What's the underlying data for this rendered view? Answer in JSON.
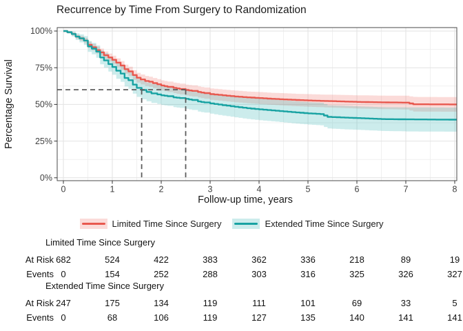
{
  "title": "Recurrence by Time From Surgery to Randomization",
  "x_axis": {
    "label": "Follow-up time, years",
    "ticks": [
      {
        "v": 0,
        "label": "0"
      },
      {
        "v": 1,
        "label": "1"
      },
      {
        "v": 2,
        "label": "2"
      },
      {
        "v": 3,
        "label": "3"
      },
      {
        "v": 4,
        "label": "4"
      },
      {
        "v": 5,
        "label": "5"
      },
      {
        "v": 6,
        "label": "6"
      },
      {
        "v": 7,
        "label": "7"
      },
      {
        "v": 8,
        "label": "8"
      }
    ]
  },
  "y_axis": {
    "label": "Percentage Survival",
    "ticks": [
      {
        "v": 0,
        "label": "0%"
      },
      {
        "v": 25,
        "label": "25%"
      },
      {
        "v": 50,
        "label": "50%"
      },
      {
        "v": 75,
        "label": "75%"
      },
      {
        "v": 100,
        "label": "100%"
      }
    ]
  },
  "risk_table_labels": {
    "at_risk": "At Risk",
    "events": "Events"
  },
  "colors": {
    "limited_line": "#E8584E",
    "limited_band": "rgba(235,90,80,0.22)",
    "extended_line": "#17A2A2",
    "extended_band": "rgba(50,180,180,0.25)",
    "dashed_reference": "#5B5B5B",
    "grid_major": "#E2E2E2",
    "grid_minor": "#F0F0F0",
    "panel_border": "#4A4A4A",
    "tick_text": "#404040"
  },
  "chart_data": {
    "type": "line",
    "subtype": "kaplan-meier-step",
    "title": "Recurrence by Time From Surgery to Randomization",
    "xlabel": "Follow-up time, years",
    "ylabel": "Percentage Survival",
    "xlim": [
      -0.13,
      8.2
    ],
    "ylim": [
      0,
      100
    ],
    "x_ticks": [
      0,
      1,
      2,
      3,
      4,
      5,
      6,
      7,
      8
    ],
    "y_ticks": [
      0,
      25,
      50,
      75,
      100
    ],
    "grid": true,
    "legend_position": "bottom",
    "dashed_reference": {
      "survival_pct": 60,
      "times": [
        1.6,
        2.5
      ]
    },
    "series": [
      {
        "name": "Limited Time Since Surgery",
        "color": "#E8584E",
        "band_fill": "rgba(235,90,80,0.22)",
        "points": [
          [
            0,
            100,
            100,
            100
          ],
          [
            0.08,
            99.2,
            98.5,
            99.9
          ],
          [
            0.17,
            98,
            96.9,
            99.1
          ],
          [
            0.25,
            96.2,
            94.8,
            97.6
          ],
          [
            0.33,
            95,
            93.4,
            96.6
          ],
          [
            0.42,
            93.5,
            91.7,
            95.3
          ],
          [
            0.5,
            90.6,
            88.5,
            92.7
          ],
          [
            0.58,
            89,
            86.8,
            91.2
          ],
          [
            0.67,
            87,
            84.6,
            89.4
          ],
          [
            0.75,
            85.5,
            83,
            88
          ],
          [
            0.83,
            83.5,
            80.9,
            86.1
          ],
          [
            0.92,
            82,
            79.3,
            84.7
          ],
          [
            1,
            80.4,
            77.6,
            83.2
          ],
          [
            1.08,
            78.5,
            75.6,
            81.4
          ],
          [
            1.17,
            76.5,
            73.5,
            79.5
          ],
          [
            1.25,
            74,
            70.9,
            77.1
          ],
          [
            1.33,
            72.5,
            69.3,
            75.7
          ],
          [
            1.42,
            70,
            66.7,
            73.3
          ],
          [
            1.5,
            68.2,
            64.9,
            71.5
          ],
          [
            1.58,
            67,
            63.6,
            70.4
          ],
          [
            1.67,
            66,
            62.6,
            69.4
          ],
          [
            1.75,
            65.5,
            62.1,
            68.9
          ],
          [
            1.83,
            64.5,
            61,
            68
          ],
          [
            1.92,
            63.7,
            60.2,
            67.2
          ],
          [
            2,
            62.9,
            59.4,
            66.4
          ],
          [
            2.13,
            62,
            58.4,
            65.6
          ],
          [
            2.25,
            61.3,
            57.7,
            64.9
          ],
          [
            2.38,
            60.5,
            56.8,
            64.2
          ],
          [
            2.5,
            59.8,
            56.1,
            63.5
          ],
          [
            2.63,
            59.2,
            55.4,
            63
          ],
          [
            2.75,
            58.5,
            54.7,
            62.3
          ],
          [
            2.88,
            57.7,
            53.9,
            61.5
          ],
          [
            3,
            57,
            53.1,
            60.9
          ],
          [
            3.25,
            56.2,
            52.3,
            60.1
          ],
          [
            3.5,
            55.4,
            51.4,
            59.4
          ],
          [
            3.75,
            54.8,
            50.8,
            58.8
          ],
          [
            4,
            54.3,
            50.2,
            58.4
          ],
          [
            4.25,
            53.8,
            49.7,
            57.9
          ],
          [
            4.5,
            53.4,
            49.2,
            57.6
          ],
          [
            4.75,
            53,
            48.8,
            57.2
          ],
          [
            5,
            52.7,
            48.4,
            57
          ],
          [
            5.25,
            52.4,
            48.1,
            56.7
          ],
          [
            5.5,
            52.2,
            47.8,
            56.6
          ],
          [
            6,
            51.7,
            47.2,
            56.2
          ],
          [
            6.5,
            51.4,
            46.8,
            56
          ],
          [
            7,
            51.2,
            46.5,
            55.9
          ],
          [
            7.15,
            50.1,
            45.1,
            55.1
          ],
          [
            8.05,
            50,
            45,
            55
          ]
        ]
      },
      {
        "name": "Extended Time Since Surgery",
        "color": "#17A2A2",
        "band_fill": "rgba(50,180,180,0.25)",
        "points": [
          [
            0,
            100,
            100,
            100
          ],
          [
            0.08,
            99.2,
            98.2,
            100
          ],
          [
            0.17,
            98,
            96.3,
            99.7
          ],
          [
            0.25,
            96.2,
            93.9,
            98.5
          ],
          [
            0.33,
            95,
            92.3,
            97.7
          ],
          [
            0.42,
            93.5,
            90.5,
            96.5
          ],
          [
            0.5,
            89.5,
            85.8,
            93.2
          ],
          [
            0.58,
            88,
            84.1,
            91.9
          ],
          [
            0.67,
            86,
            81.8,
            90.2
          ],
          [
            0.75,
            82,
            77.3,
            86.7
          ],
          [
            0.83,
            80,
            75.1,
            84.9
          ],
          [
            0.92,
            77.5,
            72.4,
            82.6
          ],
          [
            1,
            75.5,
            70.2,
            80.8
          ],
          [
            1.08,
            73,
            67.5,
            78.5
          ],
          [
            1.17,
            71,
            65.4,
            76.6
          ],
          [
            1.25,
            68,
            62.2,
            73.8
          ],
          [
            1.33,
            66.5,
            60.6,
            72.4
          ],
          [
            1.42,
            63.5,
            57.4,
            69.6
          ],
          [
            1.5,
            61.3,
            55.1,
            67.5
          ],
          [
            1.6,
            59.8,
            53.5,
            66.1
          ],
          [
            1.7,
            58.5,
            52.1,
            64.9
          ],
          [
            1.8,
            57.5,
            51,
            64
          ],
          [
            1.92,
            56.8,
            50.3,
            63.3
          ],
          [
            2,
            56.2,
            49.6,
            62.8
          ],
          [
            2.13,
            55.6,
            49,
            62.2
          ],
          [
            2.25,
            54.8,
            48.1,
            61.5
          ],
          [
            2.38,
            54.3,
            47.6,
            61
          ],
          [
            2.5,
            53.8,
            47,
            60.6
          ],
          [
            2.63,
            53,
            46.2,
            59.8
          ],
          [
            2.75,
            52,
            45.1,
            58.9
          ],
          [
            2.88,
            51.3,
            44.4,
            58.2
          ],
          [
            3,
            50.7,
            43.7,
            57.7
          ],
          [
            3.25,
            49.5,
            42.4,
            56.6
          ],
          [
            3.5,
            48.4,
            41.2,
            55.6
          ],
          [
            3.75,
            47.4,
            40.1,
            54.7
          ],
          [
            4,
            46.6,
            39.2,
            54
          ],
          [
            4.25,
            45.9,
            38.5,
            53.3
          ],
          [
            4.5,
            45.2,
            37.7,
            52.7
          ],
          [
            4.75,
            44.5,
            36.9,
            52.1
          ],
          [
            5,
            43.9,
            36.3,
            51.5
          ],
          [
            5.25,
            43.4,
            35.7,
            51.1
          ],
          [
            5.4,
            41.5,
            33.6,
            49.4
          ],
          [
            5.75,
            41,
            33,
            49
          ],
          [
            6,
            40.7,
            32.7,
            48.7
          ],
          [
            6.5,
            40,
            31.9,
            48.1
          ],
          [
            7,
            39.8,
            31.6,
            48
          ],
          [
            8.05,
            39.6,
            31.4,
            47.8
          ]
        ]
      }
    ],
    "risk_table": {
      "times": [
        0,
        1,
        2,
        3,
        4,
        5,
        6,
        7,
        8
      ],
      "groups": [
        {
          "name": "Limited Time Since Surgery",
          "at_risk": [
            682,
            524,
            422,
            383,
            362,
            336,
            218,
            89,
            19
          ],
          "events": [
            0,
            154,
            252,
            288,
            303,
            316,
            325,
            326,
            327
          ]
        },
        {
          "name": "Extended Time Since Surgery",
          "at_risk": [
            247,
            175,
            134,
            119,
            111,
            101,
            69,
            33,
            5
          ],
          "events": [
            0,
            68,
            106,
            119,
            127,
            135,
            140,
            141,
            141
          ]
        }
      ]
    }
  }
}
